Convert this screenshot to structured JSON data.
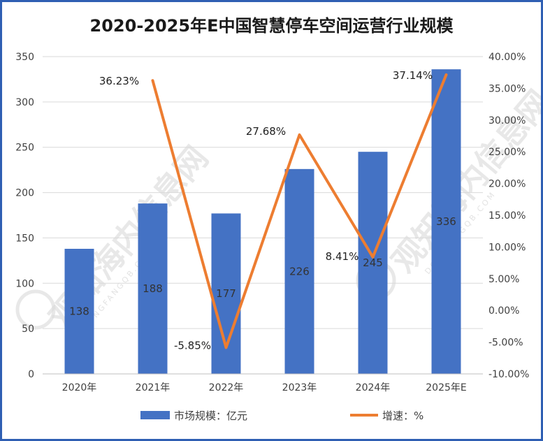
{
  "chart_data": {
    "type": "bar",
    "title": "2020-2025年E中国智慧停车空间运营行业规模",
    "categories": [
      "2020年",
      "2021年",
      "2022年",
      "2023年",
      "2024年",
      "2025年E"
    ],
    "series": [
      {
        "name": "市场规模：亿元",
        "type": "bar",
        "axis": "left",
        "color": "#4472c4",
        "values": [
          138,
          188,
          177,
          226,
          245,
          336
        ],
        "labels": [
          "138",
          "188",
          "177",
          "226",
          "245",
          "336"
        ]
      },
      {
        "name": "增速：%",
        "type": "line",
        "axis": "right",
        "color": "#ed7d31",
        "values": [
          null,
          36.23,
          -5.85,
          27.68,
          8.41,
          37.14
        ],
        "labels": [
          "",
          "36.23%",
          "-5.85%",
          "27.68%",
          "8.41%",
          "37.14%"
        ]
      }
    ],
    "y_left": {
      "range": [
        0,
        350
      ],
      "ticks": [
        "0",
        "50",
        "100",
        "150",
        "200",
        "250",
        "300",
        "350"
      ]
    },
    "y_right": {
      "range": [
        -10,
        40
      ],
      "ticks": [
        "-10.00%",
        "-5.00%",
        "0.00%",
        "5.00%",
        "10.00%",
        "15.00%",
        "20.00%",
        "25.00%",
        "30.00%",
        "35.00%",
        "40.00%"
      ]
    },
    "grid": true,
    "legend": "bottom"
  },
  "watermark": {
    "text": "观知海内信息网",
    "domain": "DONGFANGQB.COM"
  }
}
